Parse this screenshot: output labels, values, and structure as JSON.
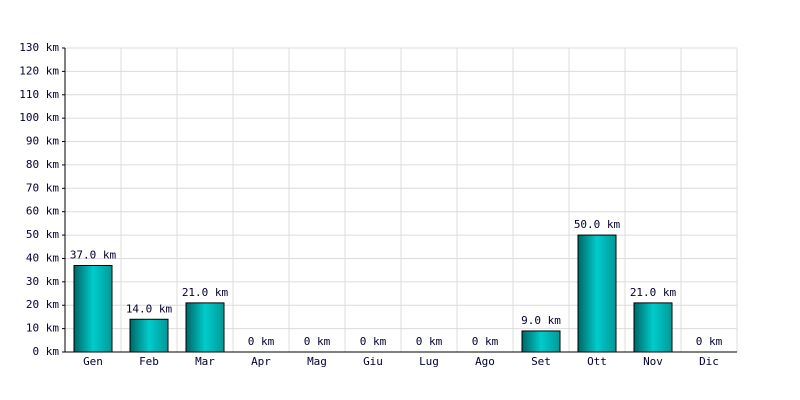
{
  "chart_data": {
    "type": "bar",
    "categories": [
      "Gen",
      "Feb",
      "Mar",
      "Apr",
      "Mag",
      "Giu",
      "Lug",
      "Ago",
      "Set",
      "Ott",
      "Nov",
      "Dic"
    ],
    "values": [
      37,
      14,
      21,
      0,
      0,
      0,
      0,
      0,
      9,
      50,
      21,
      0
    ],
    "value_labels": [
      "37.0 km",
      "14.0 km",
      "21.0 km",
      "0 km",
      "0 km",
      "0 km",
      "0 km",
      "0 km",
      "9.0 km",
      "50.0 km",
      "21.0 km",
      "0 km"
    ],
    "color": "#00cccc",
    "ylim": [
      0,
      130
    ],
    "yticks": [
      {
        "value": 0,
        "label": "0 km"
      },
      {
        "value": 10,
        "label": "10 km"
      },
      {
        "value": 20,
        "label": "20 km"
      },
      {
        "value": 30,
        "label": "30 km"
      },
      {
        "value": 40,
        "label": "40 km"
      },
      {
        "value": 50,
        "label": "50 km"
      },
      {
        "value": 60,
        "label": "60 km"
      },
      {
        "value": 70,
        "label": "70 km"
      },
      {
        "value": 80,
        "label": "80 km"
      },
      {
        "value": 90,
        "label": "90 km"
      },
      {
        "value": 100,
        "label": "100 km"
      },
      {
        "value": 110,
        "label": "110 km"
      },
      {
        "value": 120,
        "label": "120 km"
      },
      {
        "value": 130,
        "label": "130 km"
      }
    ],
    "grid": true
  }
}
